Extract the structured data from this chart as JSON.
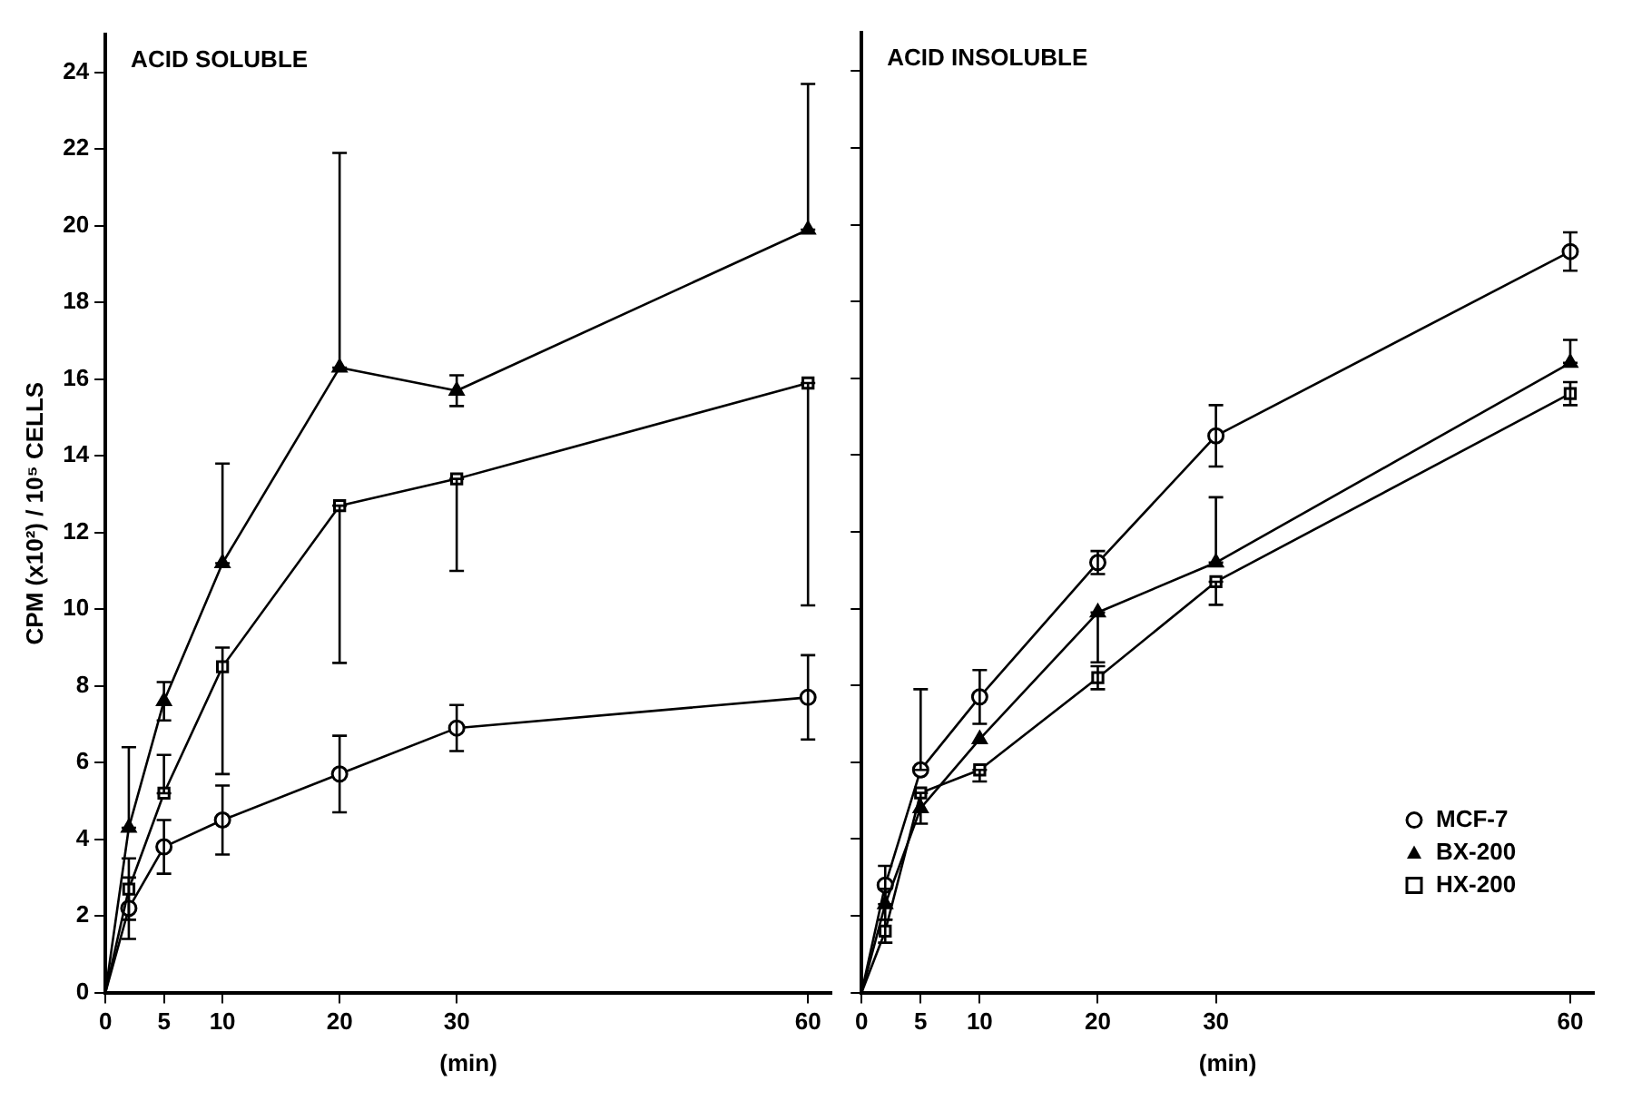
{
  "chart_data": [
    {
      "type": "line",
      "title": "ACID SOLUBLE",
      "xlabel": "(min)",
      "ylabel": "CPM (x10²) / 10⁵ CELLS",
      "xlim": [
        0,
        62
      ],
      "xticks": [
        0,
        5,
        10,
        20,
        30,
        60
      ],
      "ylim": [
        0,
        25
      ],
      "yticks": [
        0,
        2,
        4,
        6,
        8,
        10,
        12,
        14,
        16,
        18,
        20,
        22,
        24
      ],
      "grid": false,
      "legend": false,
      "x": [
        0,
        2,
        5,
        10,
        20,
        30,
        60
      ],
      "series": [
        {
          "color": "#000000",
          "marker": "circle",
          "values": [
            0,
            2.2,
            3.8,
            4.5,
            5.7,
            6.9,
            7.7
          ],
          "errors": [
            null,
            0.8,
            0.7,
            0.9,
            1.0,
            0.6,
            1.1
          ]
        },
        {
          "color": "#000000",
          "marker": "triangle",
          "values": [
            0,
            4.3,
            7.6,
            11.2,
            16.3,
            15.7,
            19.9
          ],
          "errors": [
            null,
            [
              4.3,
              6.4
            ],
            0.5,
            [
              11.2,
              13.8
            ],
            [
              16.3,
              21.9
            ],
            0.4,
            [
              19.9,
              23.7
            ]
          ]
        },
        {
          "color": "#000000",
          "marker": "square",
          "values": [
            0,
            2.7,
            5.2,
            8.5,
            12.7,
            13.4,
            15.9
          ],
          "errors": [
            null,
            0.8,
            [
              5.2,
              6.2
            ],
            [
              5.7,
              9.0
            ],
            [
              8.6,
              12.7
            ],
            [
              11.0,
              13.4
            ],
            [
              10.1,
              15.9
            ]
          ]
        }
      ]
    },
    {
      "type": "line",
      "title": "ACID INSOLUBLE",
      "xlabel": "(min)",
      "xlim": [
        0,
        62
      ],
      "xticks": [
        0,
        5,
        10,
        20,
        30,
        60
      ],
      "ylim": [
        0,
        25
      ],
      "yticks": [
        0,
        2,
        4,
        6,
        8,
        10,
        12,
        14,
        16,
        18,
        20,
        22,
        24
      ],
      "grid": false,
      "legend": "bottom right",
      "tick_labels": "x",
      "x": [
        0,
        2,
        5,
        10,
        20,
        30,
        60
      ],
      "series": [
        {
          "name": "MCF-7",
          "color": "#000000",
          "marker": "circle",
          "values": [
            0,
            2.8,
            5.8,
            7.7,
            11.2,
            14.5,
            19.3
          ],
          "errors": [
            null,
            0.5,
            [
              5.8,
              7.9
            ],
            0.7,
            0.3,
            0.8,
            0.5
          ]
        },
        {
          "name": "BX-200",
          "color": "#000000",
          "marker": "triangle",
          "values": [
            0,
            2.3,
            4.8,
            6.6,
            9.9,
            11.2,
            16.4
          ],
          "errors": [
            null,
            0.4,
            0.4,
            null,
            [
              8.6,
              9.9
            ],
            [
              11.2,
              12.9
            ],
            [
              16.4,
              17.0
            ]
          ]
        },
        {
          "name": "HX-200",
          "color": "#000000",
          "marker": "square",
          "values": [
            0,
            1.6,
            5.2,
            5.8,
            8.2,
            10.7,
            15.6
          ],
          "errors": [
            null,
            0.3,
            null,
            [
              5.5,
              5.8
            ],
            0.3,
            [
              10.1,
              10.7
            ],
            0.3
          ]
        }
      ]
    }
  ]
}
